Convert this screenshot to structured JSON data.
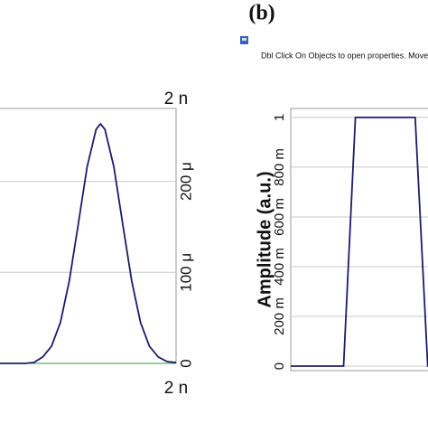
{
  "panel_label": "(b)",
  "status_text": "Dbl Click On Objects to open properties.  Move Objects wo",
  "chart_data": [
    {
      "type": "line",
      "x_top_label": "2 n",
      "x_bottom_label": "2 n",
      "x": [
        0,
        1,
        2,
        3,
        4,
        5,
        6,
        7,
        8,
        9,
        10,
        11,
        11.5,
        12,
        13,
        14,
        15,
        16,
        17,
        18,
        19,
        20
      ],
      "xlim": [
        0,
        20
      ],
      "series": [
        {
          "color": "#1c1c6b",
          "values": [
            0,
            0,
            0,
            0,
            1,
            7,
            19,
            45,
            91,
            153,
            216,
            257,
            263,
            257,
            216,
            153,
            91,
            45,
            19,
            7,
            2,
            1
          ]
        }
      ],
      "ylim": [
        0,
        280
      ],
      "yticks": [
        0,
        {
          "value": 100,
          "label": "100 μ"
        },
        {
          "value": 200,
          "label": "200 μ"
        }
      ],
      "grid": true,
      "axis_side": "right"
    },
    {
      "type": "line",
      "ylabel": "Amplitude (a.u.)",
      "x": [
        0,
        7.6,
        9.3,
        17.9,
        19.7,
        20
      ],
      "xlim": [
        0,
        20
      ],
      "series": [
        {
          "color": "#1c1c6b",
          "values": [
            0,
            0,
            1,
            1,
            0,
            0
          ]
        }
      ],
      "ylim": [
        -0.018,
        1.036
      ],
      "yticks": [
        0,
        {
          "value": 0.2,
          "label": "200 m"
        },
        {
          "value": 0.4,
          "label": "400 m"
        },
        {
          "value": 0.6,
          "label": "600 m"
        },
        {
          "value": 0.8,
          "label": "800 m"
        },
        1
      ],
      "grid": true,
      "axis_side": "left"
    }
  ]
}
